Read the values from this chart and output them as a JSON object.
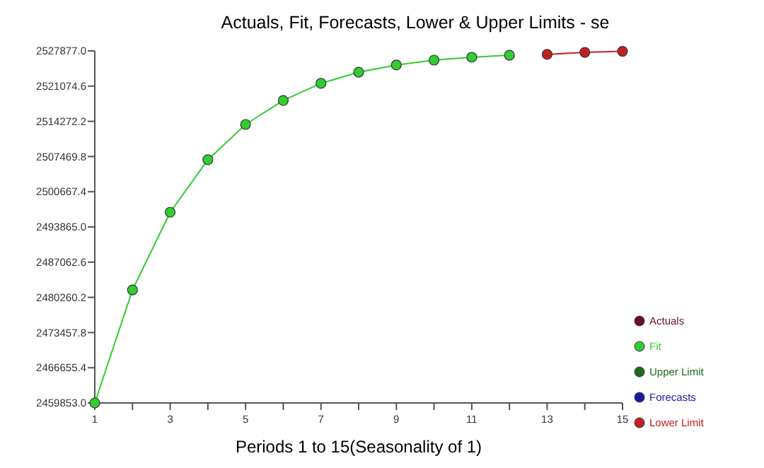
{
  "chart_data": {
    "type": "line",
    "title": "Actuals, Fit, Forecasts, Lower & Upper Limits - se",
    "xlabel": "Periods 1 to 15(Seasonality of 1)",
    "x": [
      1,
      2,
      3,
      4,
      5,
      6,
      7,
      8,
      9,
      10,
      11,
      12,
      13,
      14,
      15
    ],
    "series": [
      {
        "name": "Actuals",
        "color": "#6b1020",
        "values": [
          null,
          null,
          null,
          null,
          null,
          null,
          null,
          null,
          null,
          null,
          null,
          null,
          null,
          null,
          null
        ]
      },
      {
        "name": "Fit",
        "color": "#33cc33",
        "values": [
          2459853,
          2481700,
          2496700,
          2506850,
          2513670,
          2518300,
          2521600,
          2523770,
          2525150,
          2526100,
          2526650,
          2527050,
          null,
          null,
          null
        ]
      },
      {
        "name": "Upper Limit",
        "color": "#1a6b1a",
        "values": [
          null,
          null,
          null,
          null,
          null,
          null,
          null,
          null,
          null,
          null,
          null,
          null,
          null,
          null,
          null
        ]
      },
      {
        "name": "Forecasts",
        "color": "#1a1aa0",
        "values": [
          null,
          null,
          null,
          null,
          null,
          null,
          null,
          null,
          null,
          null,
          null,
          null,
          null,
          null,
          null
        ]
      },
      {
        "name": "Lower Limit",
        "color": "#c02020",
        "values": [
          null,
          null,
          null,
          null,
          null,
          null,
          null,
          null,
          null,
          null,
          null,
          null,
          2527200,
          2527600,
          2527800
        ]
      }
    ],
    "xlim": [
      1,
      15
    ],
    "xticks": [
      1,
      {
        "value": 2,
        "label": null
      },
      3,
      {
        "value": 4,
        "label": null
      },
      5,
      {
        "value": 6,
        "label": null
      },
      7,
      {
        "value": 8,
        "label": null
      },
      9,
      {
        "value": 10,
        "label": null
      },
      11,
      {
        "value": 12,
        "label": null
      },
      13,
      {
        "value": 14,
        "label": null
      },
      15
    ],
    "ylim": [
      2459853,
      2527877
    ],
    "yticks": [
      {
        "value": 2459853,
        "label": "2459853.0"
      },
      {
        "value": 2466655.4,
        "label": "2466655.4"
      },
      {
        "value": 2473457.8,
        "label": "2473457.8"
      },
      {
        "value": 2480260.2,
        "label": "2480260.2"
      },
      {
        "value": 2487062.6,
        "label": "2487062.6"
      },
      {
        "value": 2493865,
        "label": "2493865.0"
      },
      {
        "value": 2500667.4,
        "label": "2500667.4"
      },
      {
        "value": 2507469.8,
        "label": "2507469.8"
      },
      {
        "value": 2514272.2,
        "label": "2514272.2"
      },
      {
        "value": 2521074.6,
        "label": "2521074.6"
      },
      {
        "value": 2527877,
        "label": "2527877.0"
      }
    ],
    "grid": false,
    "legend": "bottom right",
    "marker": "circle",
    "line_style": "solid"
  }
}
